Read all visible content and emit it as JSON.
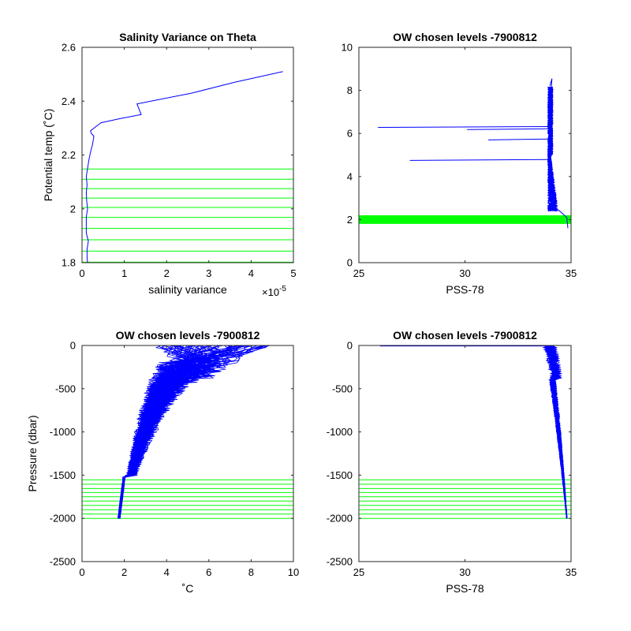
{
  "figure": {
    "background": "#ffffff",
    "profile_color": "#0000ff",
    "level_color": "#00ff00"
  },
  "chart_data": [
    {
      "type": "line",
      "title": "Salinity Variance on Theta",
      "xlabel": "salinity variance",
      "ylabel": "Potential temp (˚C)",
      "x_exponent_label": {
        "base": "×10",
        "exponent": "-5"
      },
      "xlim": [
        0,
        5
      ],
      "ylim": [
        1.8,
        2.6
      ],
      "xticks": [
        0,
        1,
        2,
        3,
        4,
        5
      ],
      "yticks": [
        1.8,
        2,
        2.2,
        2.4,
        2.6
      ],
      "ytick_labels": [
        "1.8",
        "2",
        "2.2",
        "2.4",
        "2.6"
      ],
      "series": [
        {
          "role": "profile",
          "color": "#0000ff",
          "points": [
            [
              0.13,
              1.8
            ],
            [
              0.12,
              1.82
            ],
            [
              0.12,
              1.85
            ],
            [
              0.15,
              1.88
            ],
            [
              0.1,
              1.91
            ],
            [
              0.1,
              1.94
            ],
            [
              0.1,
              1.97
            ],
            [
              0.13,
              2.0
            ],
            [
              0.11,
              2.03
            ],
            [
              0.1,
              2.06
            ],
            [
              0.12,
              2.09
            ],
            [
              0.1,
              2.12
            ],
            [
              0.13,
              2.15
            ],
            [
              0.16,
              2.18
            ],
            [
              0.2,
              2.21
            ],
            [
              0.25,
              2.24
            ],
            [
              0.28,
              2.27
            ],
            [
              0.22,
              2.28
            ],
            [
              0.2,
              2.29
            ],
            [
              0.45,
              2.32
            ],
            [
              0.9,
              2.335
            ],
            [
              1.4,
              2.35
            ],
            [
              1.3,
              2.39
            ],
            [
              2.6,
              2.43
            ],
            [
              3.6,
              2.47
            ],
            [
              4.75,
              2.51
            ]
          ]
        }
      ],
      "hlines": [
        1.802,
        1.843,
        1.885,
        1.927,
        1.968,
        2.005,
        2.04,
        2.075,
        2.11,
        2.148
      ]
    },
    {
      "type": "line",
      "title": "OW chosen levels -7900812",
      "xlabel": "PSS-78",
      "ylabel": "",
      "xlim": [
        25,
        35
      ],
      "ylim": [
        0,
        10
      ],
      "xticks": [
        25,
        30,
        35
      ],
      "yticks": [
        0,
        2,
        4,
        6,
        8,
        10
      ],
      "spikes": [
        {
          "y": 6.28,
          "x_min": 25.9
        },
        {
          "y": 6.18,
          "x_min": 30.1
        },
        {
          "y": 5.7,
          "x_min": 31.1
        },
        {
          "y": 4.75,
          "x_min": 27.4
        }
      ],
      "level_band": [
        1.8,
        2.2
      ]
    },
    {
      "type": "line",
      "title": "OW chosen levels -7900812",
      "xlabel": "˚C",
      "ylabel": "Pressure (dbar)",
      "xlim": [
        0,
        10
      ],
      "ylim": [
        -2500,
        0
      ],
      "xticks": [
        0,
        2,
        4,
        6,
        8,
        10
      ],
      "yticks": [
        -2500,
        -2000,
        -1500,
        -1000,
        -500,
        0
      ],
      "ytick_labels": [
        "-2500",
        "-2000",
        "-1500",
        "-1000",
        "-500",
        "0"
      ],
      "hlines": [
        -1555,
        -1605,
        -1655,
        -1700,
        -1750,
        -1800,
        -1850,
        -1900,
        -1950,
        -2000
      ]
    },
    {
      "type": "line",
      "title": "OW chosen levels -7900812",
      "xlabel": "PSS-78",
      "ylabel": "",
      "xlim": [
        25,
        35
      ],
      "ylim": [
        -2500,
        0
      ],
      "xticks": [
        25,
        30,
        35
      ],
      "yticks": [
        -2500,
        -2000,
        -1500,
        -1000,
        -500,
        0
      ],
      "ytick_labels": [
        "-2500",
        "-2000",
        "-1500",
        "-1000",
        "-500",
        "0"
      ],
      "hlines": [
        -1555,
        -1605,
        -1655,
        -1700,
        -1750,
        -1800,
        -1850,
        -1900,
        -1950,
        -2000
      ]
    }
  ]
}
